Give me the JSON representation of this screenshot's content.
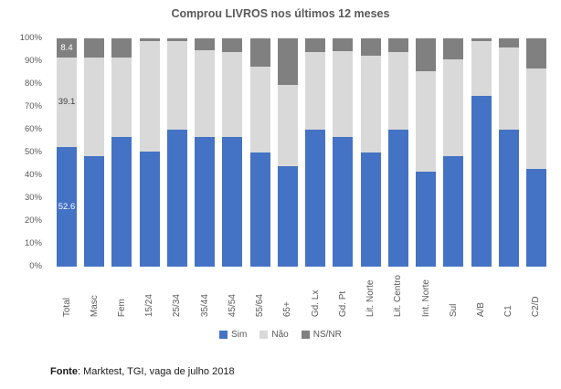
{
  "title": "Comprou LIVROS nos últimos 12 meses",
  "source": {
    "label": "Fonte",
    "text": ": Marktest, TGI, vaga de julho 2018"
  },
  "colors": {
    "sim": "#4472C4",
    "nao": "#D9D9D9",
    "nsnr": "#808080",
    "title_text": "#595959",
    "axis_text": "#595959",
    "label_on_light": "#404040",
    "label_on_fill": "#FFFFFF"
  },
  "y_axis_ticks": [
    "0%",
    "10%",
    "20%",
    "30%",
    "40%",
    "50%",
    "60%",
    "70%",
    "80%",
    "90%",
    "100%"
  ],
  "legend": [
    {
      "label": "Sim",
      "color": "#4472C4"
    },
    {
      "label": "Não",
      "color": "#D9D9D9"
    },
    {
      "label": "NS/NR",
      "color": "#808080"
    }
  ],
  "chart_data": {
    "type": "bar",
    "stacked": true,
    "percent_stack": true,
    "title": "Comprou LIVROS nos últimos 12 meses",
    "categories": [
      "Total",
      "Masc",
      "Fem",
      "15/24",
      "25/34",
      "35/44",
      "45/54",
      "55/64",
      "65+",
      "Gd. Lx",
      "Gd. Pt",
      "Lit. Norte",
      "Lit. Centro",
      "Int. Norte",
      "Sul",
      "A/B",
      "C1",
      "C2/D"
    ],
    "series": [
      {
        "name": "Sim",
        "color": "#4472C4",
        "values": [
          52.6,
          48.5,
          57,
          50.5,
          60,
          57,
          57,
          50,
          44,
          60,
          57,
          50,
          60,
          41.5,
          48.5,
          75,
          60,
          43
        ]
      },
      {
        "name": "Não",
        "color": "#D9D9D9",
        "values": [
          39.1,
          43,
          34.5,
          48.5,
          39,
          38,
          37,
          37.5,
          35.5,
          34,
          37.5,
          42.5,
          34,
          44,
          42.5,
          24,
          36,
          44
        ]
      },
      {
        "name": "NS/NR",
        "color": "#808080",
        "values": [
          8.4,
          8.5,
          8.5,
          1,
          1,
          5,
          6,
          12.5,
          20.5,
          6,
          5.5,
          7.5,
          6,
          14.5,
          9,
          1,
          4,
          13
        ]
      }
    ],
    "data_labels": {
      "category": "Total",
      "sim": "52.6",
      "nao": "39.1",
      "nsnr": "8.4"
    },
    "ylim": [
      0,
      100
    ],
    "grid": false,
    "legend_position": "bottom"
  }
}
